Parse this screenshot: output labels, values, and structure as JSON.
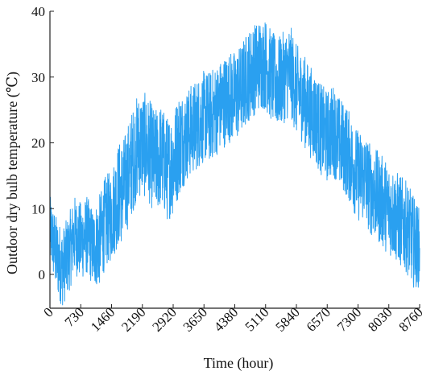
{
  "chart_data": {
    "type": "line",
    "title": "",
    "xlabel": "Time (hour)",
    "ylabel": "Outdoor dry bulb temperature (℃)",
    "xlim": [
      0,
      8760
    ],
    "ylim": [
      -4,
      40
    ],
    "x_ticks": [
      0,
      730,
      1460,
      2190,
      2920,
      3650,
      4380,
      5110,
      5840,
      6570,
      7300,
      8030,
      8760
    ],
    "x_tick_labels": [
      "0",
      "730",
      "1460",
      "2190",
      "2920",
      "3650",
      "4380",
      "5110",
      "5840",
      "6570",
      "7300",
      "8030",
      "8760"
    ],
    "y_ticks": [
      0,
      10,
      20,
      30,
      40
    ],
    "y_tick_labels": [
      "0",
      "10",
      "20",
      "30",
      "40"
    ],
    "grid": false,
    "legend": "none",
    "series": [
      {
        "color": "#2aa0f0",
        "x": [
          0,
          146,
          292,
          438,
          584,
          730,
          876,
          1022,
          1168,
          1314,
          1460,
          1606,
          1752,
          1898,
          2044,
          2190,
          2336,
          2482,
          2628,
          2774,
          2920,
          3066,
          3212,
          3358,
          3504,
          3650,
          3796,
          3942,
          4088,
          4234,
          4380,
          4526,
          4672,
          4818,
          4964,
          5110,
          5256,
          5402,
          5548,
          5694,
          5840,
          5986,
          6132,
          6278,
          6424,
          6570,
          6716,
          6862,
          7008,
          7154,
          7300,
          7446,
          7592,
          7738,
          7884,
          8030,
          8176,
          8322,
          8468,
          8614,
          8760
        ],
        "y": [
          7,
          3,
          1,
          3,
          6,
          5,
          6,
          4,
          5,
          8,
          9,
          12,
          13,
          16,
          19,
          20,
          19,
          17,
          18,
          16,
          17,
          20,
          21,
          22,
          23,
          24,
          24,
          25,
          26,
          27,
          27,
          28,
          30,
          31,
          32,
          32,
          30,
          29,
          30,
          31,
          28,
          27,
          25,
          24,
          22,
          21,
          22,
          20,
          19,
          17,
          15,
          15,
          13,
          12,
          11,
          10,
          9,
          8,
          7,
          5,
          4
        ],
        "amplitude": [
          5,
          6,
          6,
          6,
          6,
          6,
          6,
          6,
          7,
          7,
          7,
          8,
          8,
          8,
          8,
          8,
          8,
          8,
          8,
          8,
          8,
          8,
          7,
          7,
          7,
          7,
          7,
          7,
          7,
          7,
          7,
          7,
          7,
          7,
          7,
          7,
          7,
          7,
          7,
          7,
          7,
          7,
          7,
          7,
          7,
          7,
          7,
          7,
          7,
          7,
          7,
          7,
          7,
          7,
          7,
          7,
          7,
          7,
          7,
          7,
          6
        ]
      }
    ]
  }
}
